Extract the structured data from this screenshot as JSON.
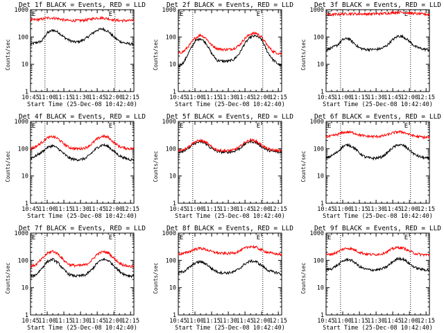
{
  "figure": {
    "colors": {
      "background": "#ffffff",
      "events": "#000000",
      "lld": "#ff0000",
      "axis": "#000000"
    },
    "x_tick_labels": [
      "10:45",
      "11:00",
      "11:15",
      "11:30",
      "11:45",
      "12:00",
      "12:15"
    ],
    "x_tick_minutes": [
      0,
      15,
      30,
      45,
      60,
      75,
      90
    ],
    "y_tick_labels": [
      "1",
      "10",
      "100",
      "1000"
    ],
    "y_tick_values": [
      1,
      10,
      100,
      1000
    ],
    "ylabel": "Counts/sec",
    "xlabel": "Start Time (25-Dec-08 10:42:40)",
    "e_marker": "E"
  },
  "chart_data": [
    {
      "type": "line",
      "title": "Det 1f BLACK = Events, RED = LLD",
      "x_unit": "minutes after 10:45",
      "xlim": [
        0,
        93
      ],
      "ylim": [
        1,
        1000
      ],
      "yscale": "log",
      "dotted_x": [
        13,
        76
      ],
      "series": [
        {
          "color": "#000000",
          "x": [
            0,
            10,
            15,
            20,
            25,
            30,
            35,
            40,
            45,
            50,
            55,
            60,
            65,
            70,
            75,
            80,
            85,
            90,
            93
          ],
          "values": [
            55,
            70,
            140,
            180,
            150,
            100,
            75,
            65,
            70,
            90,
            130,
            180,
            200,
            160,
            100,
            70,
            60,
            55,
            55
          ]
        },
        {
          "color": "#ff0000",
          "x": [
            0,
            10,
            15,
            20,
            25,
            30,
            35,
            40,
            45,
            50,
            55,
            60,
            65,
            70,
            75,
            80,
            85,
            90,
            93
          ],
          "values": [
            420,
            450,
            500,
            500,
            470,
            420,
            400,
            400,
            400,
            420,
            460,
            500,
            500,
            470,
            420,
            400,
            400,
            400,
            400
          ]
        }
      ]
    },
    {
      "type": "line",
      "title": "Det 2f BLACK = Events, RED = LLD",
      "x_unit": "minutes after 10:45",
      "xlim": [
        0,
        93
      ],
      "ylim": [
        1,
        1000
      ],
      "yscale": "log",
      "dotted_x": [
        13,
        76
      ],
      "series": [
        {
          "color": "#000000",
          "x": [
            0,
            5,
            10,
            15,
            20,
            25,
            30,
            35,
            40,
            45,
            50,
            55,
            60,
            65,
            70,
            75,
            80,
            85,
            90,
            93
          ],
          "values": [
            8,
            12,
            30,
            70,
            90,
            60,
            25,
            14,
            13,
            13,
            15,
            25,
            60,
            100,
            110,
            80,
            30,
            15,
            10,
            9
          ]
        },
        {
          "color": "#ff0000",
          "x": [
            0,
            5,
            10,
            15,
            20,
            25,
            30,
            35,
            40,
            45,
            50,
            55,
            60,
            65,
            70,
            75,
            80,
            85,
            90,
            93
          ],
          "values": [
            25,
            30,
            50,
            90,
            120,
            90,
            50,
            38,
            35,
            35,
            38,
            50,
            90,
            130,
            140,
            100,
            50,
            30,
            25,
            25
          ]
        }
      ]
    },
    {
      "type": "line",
      "title": "Det 3f BLACK = Events, RED = LLD",
      "x_unit": "minutes after 10:45",
      "xlim": [
        0,
        93
      ],
      "ylim": [
        1,
        1000
      ],
      "yscale": "log",
      "dotted_x": [
        13,
        76
      ],
      "series": [
        {
          "color": "#000000",
          "x": [
            0,
            5,
            10,
            15,
            20,
            25,
            30,
            35,
            40,
            45,
            50,
            55,
            60,
            65,
            70,
            75,
            80,
            85,
            90,
            93
          ],
          "values": [
            35,
            40,
            50,
            80,
            90,
            60,
            40,
            35,
            35,
            35,
            38,
            50,
            80,
            110,
            100,
            70,
            45,
            38,
            35,
            35
          ]
        },
        {
          "color": "#ff0000",
          "x": [
            0,
            10,
            20,
            30,
            40,
            50,
            60,
            65,
            70,
            80,
            90,
            93
          ],
          "values": [
            650,
            680,
            720,
            700,
            700,
            720,
            780,
            820,
            800,
            720,
            680,
            680
          ]
        }
      ]
    },
    {
      "type": "line",
      "title": "Det 4f BLACK = Events, RED = LLD",
      "x_unit": "minutes after 10:45",
      "xlim": [
        0,
        93
      ],
      "ylim": [
        1,
        1000
      ],
      "yscale": "log",
      "dotted_x": [
        13,
        76
      ],
      "series": [
        {
          "color": "#000000",
          "x": [
            0,
            5,
            10,
            15,
            20,
            25,
            30,
            35,
            40,
            45,
            50,
            55,
            60,
            65,
            70,
            75,
            80,
            85,
            90,
            93
          ],
          "values": [
            45,
            55,
            75,
            110,
            130,
            100,
            65,
            45,
            40,
            40,
            45,
            70,
            110,
            140,
            120,
            80,
            55,
            45,
            40,
            40
          ]
        },
        {
          "color": "#ff0000",
          "x": [
            0,
            5,
            10,
            15,
            20,
            25,
            30,
            35,
            40,
            45,
            50,
            55,
            60,
            65,
            70,
            75,
            80,
            85,
            90,
            93
          ],
          "values": [
            100,
            120,
            170,
            250,
            280,
            230,
            150,
            110,
            100,
            100,
            110,
            150,
            230,
            290,
            260,
            170,
            120,
            105,
            100,
            100
          ]
        }
      ]
    },
    {
      "type": "line",
      "title": "Det 5f BLACK = Events, RED = LLD",
      "x_unit": "minutes after 10:45",
      "xlim": [
        0,
        93
      ],
      "ylim": [
        1,
        1000
      ],
      "yscale": "log",
      "dotted_x": [
        13,
        76
      ],
      "series": [
        {
          "color": "#000000",
          "x": [
            0,
            5,
            10,
            15,
            20,
            25,
            30,
            35,
            40,
            45,
            50,
            55,
            60,
            65,
            70,
            75,
            80,
            85,
            90,
            93
          ],
          "values": [
            75,
            85,
            110,
            160,
            180,
            150,
            100,
            80,
            75,
            75,
            80,
            100,
            150,
            190,
            170,
            120,
            90,
            80,
            75,
            75
          ]
        },
        {
          "color": "#ff0000",
          "x": [
            0,
            5,
            10,
            15,
            20,
            25,
            30,
            35,
            40,
            45,
            50,
            55,
            60,
            65,
            70,
            75,
            80,
            85,
            90,
            93
          ],
          "values": [
            85,
            95,
            125,
            180,
            200,
            170,
            115,
            90,
            85,
            85,
            90,
            115,
            170,
            210,
            190,
            135,
            100,
            90,
            85,
            85
          ]
        }
      ]
    },
    {
      "type": "line",
      "title": "Det 6f BLACK = Events, RED = LLD",
      "x_unit": "minutes after 10:45",
      "xlim": [
        0,
        93
      ],
      "ylim": [
        1,
        1000
      ],
      "yscale": "log",
      "dotted_x": [
        13,
        76
      ],
      "series": [
        {
          "color": "#000000",
          "x": [
            0,
            5,
            10,
            15,
            20,
            25,
            30,
            35,
            40,
            45,
            50,
            55,
            60,
            65,
            70,
            75,
            80,
            85,
            90,
            93
          ],
          "values": [
            45,
            55,
            75,
            120,
            140,
            110,
            70,
            50,
            45,
            45,
            50,
            70,
            110,
            140,
            130,
            90,
            60,
            50,
            45,
            45
          ]
        },
        {
          "color": "#ff0000",
          "x": [
            0,
            5,
            10,
            15,
            20,
            25,
            30,
            35,
            40,
            45,
            50,
            55,
            60,
            65,
            70,
            75,
            80,
            85,
            90,
            93
          ],
          "values": [
            270,
            290,
            330,
            390,
            410,
            380,
            320,
            290,
            280,
            280,
            290,
            320,
            380,
            420,
            400,
            330,
            290,
            270,
            260,
            260
          ]
        }
      ]
    },
    {
      "type": "line",
      "title": "Det 7f BLACK = Events, RED = LLD",
      "x_unit": "minutes after 10:45",
      "xlim": [
        0,
        93
      ],
      "ylim": [
        1,
        1000
      ],
      "yscale": "log",
      "dotted_x": [
        13,
        76
      ],
      "series": [
        {
          "color": "#000000",
          "x": [
            0,
            5,
            10,
            15,
            20,
            25,
            30,
            35,
            40,
            45,
            50,
            55,
            60,
            65,
            70,
            75,
            80,
            85,
            90,
            93
          ],
          "values": [
            25,
            30,
            50,
            90,
            110,
            80,
            45,
            30,
            27,
            27,
            30,
            45,
            80,
            110,
            100,
            65,
            40,
            30,
            27,
            27
          ]
        },
        {
          "color": "#ff0000",
          "x": [
            0,
            5,
            10,
            15,
            20,
            25,
            30,
            35,
            40,
            45,
            50,
            55,
            60,
            65,
            70,
            75,
            80,
            85,
            90,
            93
          ],
          "values": [
            60,
            70,
            110,
            180,
            220,
            170,
            100,
            70,
            65,
            65,
            70,
            100,
            170,
            210,
            190,
            120,
            80,
            65,
            60,
            60
          ]
        }
      ]
    },
    {
      "type": "line",
      "title": "Det 8f BLACK = Events, RED = LLD",
      "x_unit": "minutes after 10:45",
      "xlim": [
        0,
        93
      ],
      "ylim": [
        1,
        1000
      ],
      "yscale": "log",
      "dotted_x": [
        13,
        76
      ],
      "series": [
        {
          "color": "#000000",
          "x": [
            0,
            5,
            10,
            15,
            20,
            25,
            30,
            35,
            40,
            45,
            50,
            55,
            60,
            65,
            70,
            75,
            80,
            85,
            90,
            93
          ],
          "values": [
            35,
            40,
            55,
            80,
            90,
            75,
            50,
            38,
            35,
            35,
            38,
            50,
            75,
            95,
            90,
            65,
            45,
            38,
            35,
            30
          ]
        },
        {
          "color": "#ff0000",
          "x": [
            0,
            5,
            10,
            15,
            20,
            25,
            30,
            35,
            40,
            45,
            50,
            55,
            60,
            65,
            70,
            75,
            80,
            85,
            90,
            93
          ],
          "values": [
            170,
            180,
            210,
            260,
            280,
            250,
            210,
            190,
            180,
            180,
            190,
            220,
            280,
            330,
            300,
            240,
            200,
            180,
            170,
            160
          ]
        }
      ]
    },
    {
      "type": "line",
      "title": "Det 9f BLACK = Events, RED = LLD",
      "x_unit": "minutes after 10:45",
      "xlim": [
        0,
        93
      ],
      "ylim": [
        1,
        1000
      ],
      "yscale": "log",
      "dotted_x": [
        13,
        76
      ],
      "series": [
        {
          "color": "#000000",
          "x": [
            0,
            5,
            10,
            15,
            20,
            25,
            30,
            35,
            40,
            45,
            50,
            55,
            60,
            65,
            70,
            75,
            80,
            85,
            90,
            93
          ],
          "values": [
            45,
            50,
            65,
            95,
            110,
            90,
            60,
            48,
            45,
            45,
            48,
            60,
            90,
            120,
            110,
            75,
            55,
            48,
            45,
            45
          ]
        },
        {
          "color": "#ff0000",
          "x": [
            0,
            5,
            10,
            15,
            20,
            25,
            30,
            35,
            40,
            45,
            50,
            55,
            60,
            65,
            70,
            75,
            80,
            85,
            90,
            93
          ],
          "values": [
            160,
            170,
            200,
            260,
            280,
            250,
            200,
            175,
            165,
            165,
            175,
            210,
            270,
            300,
            280,
            220,
            180,
            165,
            160,
            160
          ]
        }
      ]
    }
  ]
}
